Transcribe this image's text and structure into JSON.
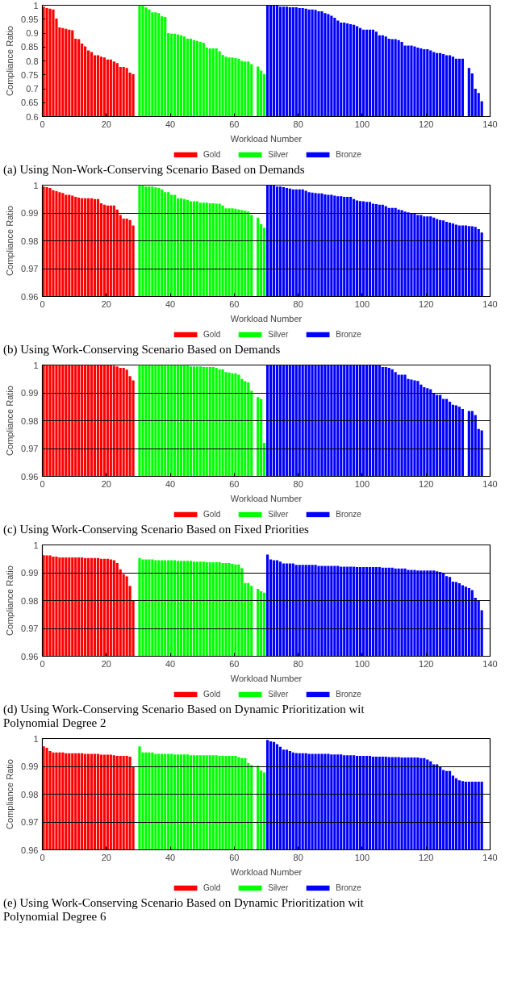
{
  "chart_data": [
    {
      "type": "bar",
      "xlabel": "Workload Number",
      "ylabel": "Compliance Ratio",
      "xlim": [
        0,
        140
      ],
      "xticks": [
        0,
        20,
        40,
        60,
        80,
        100,
        120,
        140
      ],
      "ylim": [
        0.6,
        1
      ],
      "yticks": [
        0.6,
        0.65,
        0.7,
        0.75,
        0.8,
        0.85,
        0.9,
        0.95,
        1
      ],
      "grid": false,
      "legend": "bottom",
      "annotations": [
        "(a) Using Non-Work-Conserving Scenario Based on Demands"
      ],
      "series": [
        {
          "name": "Gold",
          "color": "#ff0000",
          "x": [
            0,
            1,
            2,
            3,
            4,
            5,
            6,
            7,
            8,
            9,
            10,
            11,
            12,
            13,
            14,
            15,
            16,
            17,
            18,
            19,
            20,
            21,
            22,
            23,
            24,
            25,
            26,
            27,
            28
          ],
          "values": [
            0.995,
            0.99,
            0.988,
            0.985,
            0.952,
            0.92,
            0.918,
            0.915,
            0.912,
            0.91,
            0.88,
            0.878,
            0.862,
            0.852,
            0.838,
            0.832,
            0.82,
            0.82,
            0.815,
            0.812,
            0.805,
            0.805,
            0.798,
            0.792,
            0.778,
            0.778,
            0.775,
            0.758,
            0.752
          ]
        },
        {
          "name": "Silver",
          "color": "#00ff00",
          "x": [
            30,
            31,
            32,
            33,
            34,
            35,
            36,
            37,
            38,
            39,
            40,
            41,
            42,
            43,
            44,
            45,
            46,
            47,
            48,
            49,
            50,
            51,
            52,
            53,
            54,
            55,
            56,
            57,
            58,
            59,
            60,
            61,
            62,
            63,
            64,
            65,
            66,
            67,
            68,
            69
          ],
          "values": [
            1,
            1,
            0.992,
            0.985,
            0.975,
            0.975,
            0.972,
            0.96,
            0.958,
            0.9,
            0.898,
            0.898,
            0.895,
            0.892,
            0.888,
            0.88,
            0.88,
            0.875,
            0.872,
            0.868,
            0.865,
            0.848,
            0.845,
            0.845,
            0.845,
            0.835,
            0.822,
            0.815,
            0.812,
            0.812,
            0.81,
            0.808,
            0.8,
            0.798,
            0.798,
            0.788,
            null,
            0.78,
            0.765,
            0.753
          ]
        },
        {
          "name": "Bronze",
          "color": "#0000ff",
          "x": [
            70,
            71,
            72,
            73,
            74,
            75,
            76,
            77,
            78,
            79,
            80,
            81,
            82,
            83,
            84,
            85,
            86,
            87,
            88,
            89,
            90,
            91,
            92,
            93,
            94,
            95,
            96,
            97,
            98,
            99,
            100,
            101,
            102,
            103,
            104,
            105,
            106,
            107,
            108,
            109,
            110,
            111,
            112,
            113,
            114,
            115,
            116,
            117,
            118,
            119,
            120,
            121,
            122,
            123,
            124,
            125,
            126,
            127,
            128,
            129,
            130,
            131,
            132,
            133,
            134,
            135,
            136,
            137
          ],
          "values": [
            1,
            1,
            1,
            1,
            0.995,
            0.995,
            0.995,
            0.993,
            0.993,
            0.993,
            0.99,
            0.99,
            0.988,
            0.985,
            0.985,
            0.983,
            0.978,
            0.978,
            0.972,
            0.968,
            0.962,
            0.955,
            0.945,
            0.938,
            0.938,
            0.935,
            0.932,
            0.93,
            0.925,
            0.918,
            0.912,
            0.912,
            0.912,
            0.912,
            0.905,
            0.892,
            0.892,
            0.888,
            0.88,
            0.878,
            0.878,
            0.875,
            0.868,
            0.855,
            0.855,
            0.855,
            0.852,
            0.848,
            0.845,
            0.842,
            0.842,
            0.838,
            0.832,
            0.828,
            0.828,
            0.825,
            0.82,
            0.82,
            0.815,
            0.808,
            0.808,
            0.808,
            null,
            0.775,
            0.755,
            0.7,
            0.685,
            0.655
          ]
        }
      ]
    },
    {
      "type": "bar",
      "xlabel": "Workload Number",
      "ylabel": "Compliance Ratio",
      "xlim": [
        0,
        140
      ],
      "xticks": [
        0,
        20,
        40,
        60,
        80,
        100,
        120,
        140
      ],
      "ylim": [
        0.96,
        1
      ],
      "yticks": [
        0.96,
        0.97,
        0.98,
        0.99,
        1
      ],
      "grid": "y",
      "legend": "bottom",
      "annotations": [
        "(b) Using Work-Conserving Scenario Based on Demands"
      ],
      "series": [
        {
          "name": "Gold",
          "color": "#ff0000",
          "x": [
            0,
            1,
            2,
            3,
            4,
            5,
            6,
            7,
            8,
            9,
            10,
            11,
            12,
            13,
            14,
            15,
            16,
            17,
            18,
            19,
            20,
            21,
            22,
            23,
            24,
            25,
            26,
            27,
            28
          ],
          "values": [
            0.9995,
            0.9993,
            0.999,
            0.9982,
            0.9978,
            0.9975,
            0.9972,
            0.9965,
            0.9965,
            0.9962,
            0.9958,
            0.9955,
            0.9953,
            0.9953,
            0.9953,
            0.9953,
            0.995,
            0.995,
            0.9935,
            0.993,
            0.9927,
            0.9927,
            0.9927,
            0.9912,
            0.9893,
            0.988,
            0.988,
            0.9875,
            0.9855
          ]
        },
        {
          "name": "Silver",
          "color": "#00ff00",
          "x": [
            30,
            31,
            32,
            33,
            34,
            35,
            36,
            37,
            38,
            39,
            40,
            41,
            42,
            43,
            44,
            45,
            46,
            47,
            48,
            49,
            50,
            51,
            52,
            53,
            54,
            55,
            56,
            57,
            58,
            59,
            60,
            61,
            62,
            63,
            64,
            65,
            66,
            67,
            68,
            69
          ],
          "values": [
            1,
            1,
            0.9995,
            0.9995,
            0.9995,
            0.9992,
            0.999,
            0.9985,
            0.9975,
            0.9975,
            0.9965,
            0.9965,
            0.9953,
            0.9953,
            0.995,
            0.9947,
            0.9942,
            0.9942,
            0.9942,
            0.9937,
            0.9937,
            0.9937,
            0.9935,
            0.9935,
            0.9933,
            0.9933,
            0.9927,
            0.9917,
            0.9917,
            0.9917,
            0.9915,
            0.9912,
            0.991,
            0.9908,
            0.9905,
            0.9893,
            null,
            0.9883,
            0.986,
            0.9847
          ]
        },
        {
          "name": "Bronze",
          "color": "#0000ff",
          "x": [
            70,
            71,
            72,
            73,
            74,
            75,
            76,
            77,
            78,
            79,
            80,
            81,
            82,
            83,
            84,
            85,
            86,
            87,
            88,
            89,
            90,
            91,
            92,
            93,
            94,
            95,
            96,
            97,
            98,
            99,
            100,
            101,
            102,
            103,
            104,
            105,
            106,
            107,
            108,
            109,
            110,
            111,
            112,
            113,
            114,
            115,
            116,
            117,
            118,
            119,
            120,
            121,
            122,
            123,
            124,
            125,
            126,
            127,
            128,
            129,
            130,
            131,
            132,
            133,
            134,
            135,
            136,
            137
          ],
          "values": [
            1,
            1,
            1,
            0.9995,
            0.9995,
            0.9993,
            0.999,
            0.9988,
            0.9985,
            0.9985,
            0.9985,
            0.9985,
            0.998,
            0.9975,
            0.9973,
            0.9972,
            0.997,
            0.997,
            0.9967,
            0.9965,
            0.9965,
            0.9962,
            0.996,
            0.996,
            0.9958,
            0.9958,
            0.9958,
            0.995,
            0.9945,
            0.9943,
            0.9942,
            0.994,
            0.994,
            0.9933,
            0.9932,
            0.993,
            0.993,
            0.9925,
            0.9918,
            0.9918,
            0.9918,
            0.9912,
            0.991,
            0.9905,
            0.9902,
            0.99,
            0.9898,
            0.9893,
            0.9893,
            0.9888,
            0.9888,
            0.9888,
            0.9883,
            0.9878,
            0.9875,
            0.9873,
            0.9868,
            0.9865,
            0.9862,
            0.9858,
            0.9855,
            0.9855,
            0.9855,
            0.9853,
            0.9852,
            0.985,
            0.9842,
            0.983
          ]
        }
      ]
    },
    {
      "type": "bar",
      "xlabel": "Workload Number",
      "ylabel": "Compliance Ratio",
      "xlim": [
        0,
        140
      ],
      "xticks": [
        0,
        20,
        40,
        60,
        80,
        100,
        120,
        140
      ],
      "ylim": [
        0.96,
        1
      ],
      "yticks": [
        0.96,
        0.97,
        0.98,
        0.99,
        1
      ],
      "grid": "y",
      "legend": "bottom",
      "annotations": [
        "(c) Using Work-Conserving Scenario Based on Fixed Priorities"
      ],
      "series": [
        {
          "name": "Gold",
          "color": "#ff0000",
          "x": [
            0,
            1,
            2,
            3,
            4,
            5,
            6,
            7,
            8,
            9,
            10,
            11,
            12,
            13,
            14,
            15,
            16,
            17,
            18,
            19,
            20,
            21,
            22,
            23,
            24,
            25,
            26,
            27,
            28
          ],
          "values": [
            1,
            1,
            1,
            1,
            1,
            1,
            1,
            1,
            1,
            1,
            1,
            1,
            1,
            1,
            1,
            1,
            1,
            1,
            1,
            1,
            1,
            1,
            0.9997,
            0.9995,
            0.999,
            0.999,
            0.9983,
            0.996,
            0.9945
          ]
        },
        {
          "name": "Silver",
          "color": "#00ff00",
          "x": [
            30,
            31,
            32,
            33,
            34,
            35,
            36,
            37,
            38,
            39,
            40,
            41,
            42,
            43,
            44,
            45,
            46,
            47,
            48,
            49,
            50,
            51,
            52,
            53,
            54,
            55,
            56,
            57,
            58,
            59,
            60,
            61,
            62,
            63,
            64,
            65,
            66,
            67,
            68,
            69
          ],
          "values": [
            1,
            1,
            1,
            1,
            1,
            1,
            1,
            1,
            1,
            1,
            1,
            1,
            1,
            1,
            1,
            1,
            0.9995,
            0.9995,
            0.9995,
            0.9995,
            0.9993,
            0.9993,
            0.9993,
            0.9993,
            0.999,
            0.9985,
            0.9985,
            0.9975,
            0.9973,
            0.997,
            0.997,
            0.9965,
            0.995,
            0.9942,
            0.9938,
            0.9907,
            null,
            0.9885,
            0.9878,
            0.972
          ]
        },
        {
          "name": "Bronze",
          "color": "#0000ff",
          "x": [
            70,
            71,
            72,
            73,
            74,
            75,
            76,
            77,
            78,
            79,
            80,
            81,
            82,
            83,
            84,
            85,
            86,
            87,
            88,
            89,
            90,
            91,
            92,
            93,
            94,
            95,
            96,
            97,
            98,
            99,
            100,
            101,
            102,
            103,
            104,
            105,
            106,
            107,
            108,
            109,
            110,
            111,
            112,
            113,
            114,
            115,
            116,
            117,
            118,
            119,
            120,
            121,
            122,
            123,
            124,
            125,
            126,
            127,
            128,
            129,
            130,
            131,
            132,
            133,
            134,
            135,
            136,
            137
          ],
          "values": [
            1,
            1,
            1,
            1,
            1,
            1,
            1,
            1,
            1,
            1,
            1,
            1,
            1,
            1,
            1,
            1,
            1,
            1,
            1,
            1,
            1,
            1,
            1,
            1,
            1,
            1,
            1,
            1,
            1,
            1,
            1,
            1,
            1,
            1,
            1,
            1,
            0.9993,
            0.9993,
            0.999,
            0.9985,
            0.9975,
            0.9965,
            0.9965,
            0.9965,
            0.995,
            0.9948,
            0.9945,
            0.9943,
            0.993,
            0.992,
            0.9917,
            0.9913,
            0.99,
            0.9893,
            0.9893,
            0.9878,
            0.9878,
            0.9868,
            0.9857,
            0.9855,
            0.985,
            0.9842,
            null,
            0.9835,
            0.9835,
            0.982,
            0.977,
            0.9765
          ]
        }
      ]
    },
    {
      "type": "bar",
      "xlabel": "Workload Number",
      "ylabel": "Compliance Ratio",
      "xlim": [
        0,
        140
      ],
      "xticks": [
        0,
        20,
        40,
        60,
        80,
        100,
        120,
        140
      ],
      "ylim": [
        0.96,
        1
      ],
      "yticks": [
        0.96,
        0.97,
        0.98,
        0.99,
        1
      ],
      "grid": "y",
      "legend": "bottom",
      "annotations": [
        "(d) Using Work-Conserving Scenario Based on Dynamic Prioritization wit",
        "Polynomial Degree 2"
      ],
      "series": [
        {
          "name": "Gold",
          "color": "#ff0000",
          "x": [
            0,
            1,
            2,
            3,
            4,
            5,
            6,
            7,
            8,
            9,
            10,
            11,
            12,
            13,
            14,
            15,
            16,
            17,
            18,
            19,
            20,
            21,
            22,
            23,
            24,
            25,
            26,
            27,
            28
          ],
          "values": [
            0.9963,
            0.9962,
            0.9962,
            0.9958,
            0.9958,
            0.9955,
            0.9955,
            0.9955,
            0.9955,
            0.9955,
            0.9955,
            0.9955,
            0.9955,
            0.9953,
            0.9953,
            0.9953,
            0.9953,
            0.9953,
            0.995,
            0.995,
            0.995,
            0.9948,
            0.9945,
            0.9935,
            0.9912,
            0.9895,
            0.9887,
            0.9853,
            0.98
          ]
        },
        {
          "name": "Silver",
          "color": "#00ff00",
          "x": [
            30,
            31,
            32,
            33,
            34,
            35,
            36,
            37,
            38,
            39,
            40,
            41,
            42,
            43,
            44,
            45,
            46,
            47,
            48,
            49,
            50,
            51,
            52,
            53,
            54,
            55,
            56,
            57,
            58,
            59,
            60,
            61,
            62,
            63,
            64,
            65,
            66,
            67,
            68,
            69
          ],
          "values": [
            0.9953,
            0.9948,
            0.9948,
            0.9948,
            0.9948,
            0.9945,
            0.9945,
            0.9945,
            0.9945,
            0.9945,
            0.9945,
            0.9945,
            0.9943,
            0.9943,
            0.9943,
            0.9943,
            0.9943,
            0.994,
            0.994,
            0.994,
            0.994,
            0.9938,
            0.9938,
            0.9938,
            0.9938,
            0.9938,
            0.9935,
            0.9935,
            0.9935,
            0.9932,
            0.993,
            0.993,
            0.9917,
            0.9863,
            0.9863,
            0.9853,
            null,
            0.9842,
            0.9833,
            0.9828
          ]
        },
        {
          "name": "Bronze",
          "color": "#0000ff",
          "x": [
            70,
            71,
            72,
            73,
            74,
            75,
            76,
            77,
            78,
            79,
            80,
            81,
            82,
            83,
            84,
            85,
            86,
            87,
            88,
            89,
            90,
            91,
            92,
            93,
            94,
            95,
            96,
            97,
            98,
            99,
            100,
            101,
            102,
            103,
            104,
            105,
            106,
            107,
            108,
            109,
            110,
            111,
            112,
            113,
            114,
            115,
            116,
            117,
            118,
            119,
            120,
            121,
            122,
            123,
            124,
            125,
            126,
            127,
            128,
            129,
            130,
            131,
            132,
            133,
            134,
            135,
            136,
            137
          ],
          "values": [
            0.9965,
            0.9948,
            0.9945,
            0.9945,
            0.994,
            0.9933,
            0.9933,
            0.9933,
            0.9933,
            0.9928,
            0.9928,
            0.9928,
            0.9928,
            0.9928,
            0.9928,
            0.9928,
            0.9925,
            0.9925,
            0.9925,
            0.9925,
            0.9925,
            0.9925,
            0.9925,
            0.9922,
            0.9922,
            0.9922,
            0.9922,
            0.9922,
            0.992,
            0.992,
            0.992,
            0.992,
            0.992,
            0.992,
            0.992,
            0.992,
            0.9918,
            0.9918,
            0.9918,
            0.9918,
            0.9915,
            0.9915,
            0.9915,
            0.9915,
            0.991,
            0.991,
            0.991,
            0.9908,
            0.9908,
            0.9908,
            0.9908,
            0.9908,
            0.9908,
            0.9905,
            0.9903,
            0.99,
            0.9888,
            0.9885,
            0.9868,
            0.9867,
            0.9862,
            0.9855,
            0.985,
            0.9845,
            0.9838,
            0.981,
            0.98,
            0.9765
          ]
        }
      ]
    },
    {
      "type": "bar",
      "xlabel": "Workload Number",
      "ylabel": "Compliance Ratio",
      "xlim": [
        0,
        140
      ],
      "xticks": [
        0,
        20,
        40,
        60,
        80,
        100,
        120,
        140
      ],
      "ylim": [
        0.96,
        1
      ],
      "yticks": [
        0.96,
        0.97,
        0.98,
        0.99,
        1
      ],
      "grid": "y",
      "legend": "bottom",
      "annotations": [
        "(e) Using Work-Conserving Scenario Based on Dynamic Prioritization wit",
        "Polynomial Degree 6"
      ],
      "series": [
        {
          "name": "Gold",
          "color": "#ff0000",
          "x": [
            0,
            1,
            2,
            3,
            4,
            5,
            6,
            7,
            8,
            9,
            10,
            11,
            12,
            13,
            14,
            15,
            16,
            17,
            18,
            19,
            20,
            21,
            22,
            23,
            24,
            25,
            26,
            27,
            28
          ],
          "values": [
            0.9972,
            0.9967,
            0.9955,
            0.995,
            0.995,
            0.995,
            0.995,
            0.9947,
            0.9947,
            0.9947,
            0.9947,
            0.9947,
            0.9947,
            0.9945,
            0.9945,
            0.9945,
            0.9945,
            0.9945,
            0.9942,
            0.9942,
            0.9942,
            0.9942,
            0.994,
            0.9938,
            0.9938,
            0.9938,
            0.9938,
            0.9935,
            0.99
          ]
        },
        {
          "name": "Silver",
          "color": "#00ff00",
          "x": [
            30,
            31,
            32,
            33,
            34,
            35,
            36,
            37,
            38,
            39,
            40,
            41,
            42,
            43,
            44,
            45,
            46,
            47,
            48,
            49,
            50,
            51,
            52,
            53,
            54,
            55,
            56,
            57,
            58,
            59,
            60,
            61,
            62,
            63,
            64,
            65,
            66,
            67,
            68,
            69
          ],
          "values": [
            0.9972,
            0.995,
            0.995,
            0.995,
            0.995,
            0.9945,
            0.9945,
            0.9945,
            0.9945,
            0.9945,
            0.9945,
            0.9943,
            0.9943,
            0.9943,
            0.9943,
            0.9943,
            0.994,
            0.994,
            0.994,
            0.994,
            0.994,
            0.994,
            0.994,
            0.994,
            0.994,
            0.9938,
            0.9938,
            0.9938,
            0.9938,
            0.9938,
            0.9938,
            0.9933,
            0.993,
            0.993,
            0.9912,
            0.9905,
            null,
            0.9903,
            0.9885,
            0.9878
          ]
        },
        {
          "name": "Bronze",
          "color": "#0000ff",
          "x": [
            70,
            71,
            72,
            73,
            74,
            75,
            76,
            77,
            78,
            79,
            80,
            81,
            82,
            83,
            84,
            85,
            86,
            87,
            88,
            89,
            90,
            91,
            92,
            93,
            94,
            95,
            96,
            97,
            98,
            99,
            100,
            101,
            102,
            103,
            104,
            105,
            106,
            107,
            108,
            109,
            110,
            111,
            112,
            113,
            114,
            115,
            116,
            117,
            118,
            119,
            120,
            121,
            122,
            123,
            124,
            125,
            126,
            127,
            128,
            129,
            130,
            131,
            132,
            133,
            134,
            135,
            136,
            137
          ],
          "values": [
            0.9995,
            0.999,
            0.9988,
            0.998,
            0.997,
            0.996,
            0.996,
            0.9955,
            0.995,
            0.9948,
            0.9947,
            0.9947,
            0.9947,
            0.9945,
            0.9945,
            0.9945,
            0.9945,
            0.9945,
            0.9945,
            0.9945,
            0.9943,
            0.9943,
            0.9943,
            0.9943,
            0.994,
            0.994,
            0.994,
            0.994,
            0.9938,
            0.9938,
            0.9938,
            0.9938,
            0.9938,
            0.9935,
            0.9935,
            0.9935,
            0.9935,
            0.9935,
            0.9933,
            0.9933,
            0.9933,
            0.9933,
            0.9932,
            0.9932,
            0.9932,
            0.9932,
            0.9932,
            0.9932,
            0.993,
            0.993,
            0.9925,
            0.9918,
            0.9907,
            0.9907,
            0.99,
            0.9887,
            0.9883,
            0.9883,
            0.9867,
            0.9857,
            0.985,
            0.9847,
            0.9845,
            0.9845,
            0.9845,
            0.9845,
            0.9845,
            0.9845
          ]
        }
      ]
    }
  ]
}
